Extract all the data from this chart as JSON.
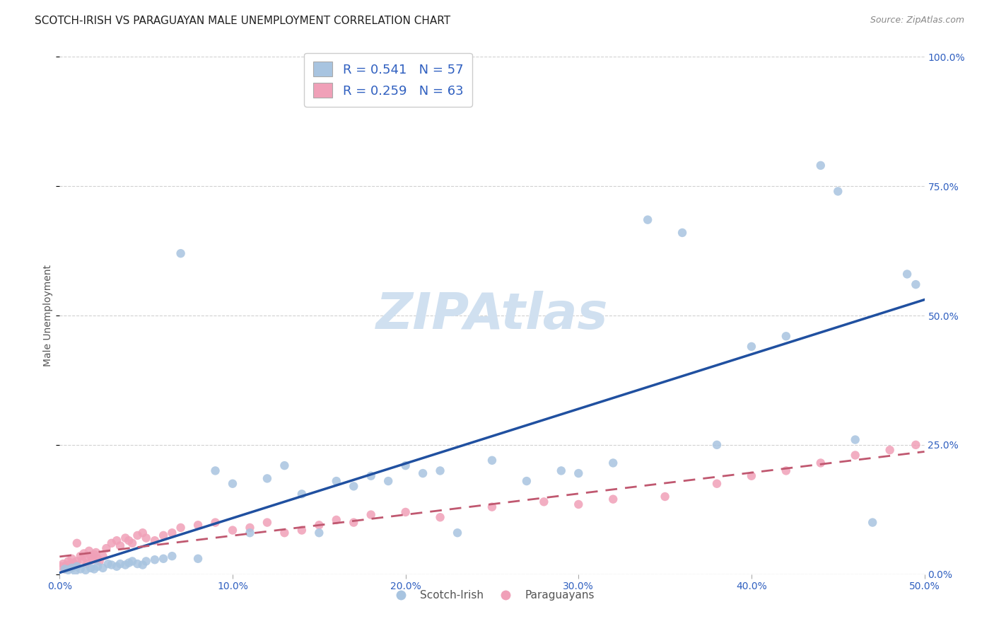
{
  "title": "SCOTCH-IRISH VS PARAGUAYAN MALE UNEMPLOYMENT CORRELATION CHART",
  "source": "Source: ZipAtlas.com",
  "xlabel_vals": [
    0.0,
    0.1,
    0.2,
    0.3,
    0.4,
    0.5
  ],
  "ylabel_vals": [
    0.0,
    0.25,
    0.5,
    0.75,
    1.0
  ],
  "xlim": [
    0.0,
    0.5
  ],
  "ylim": [
    0.0,
    1.0
  ],
  "ylabel": "Male Unemployment",
  "blue_color": "#a8c4e0",
  "pink_color": "#f0a0b8",
  "trendline_blue": "#2050a0",
  "trendline_pink": "#c05870",
  "watermark_color": "#d0e0f0",
  "legend_label_blue": "R = 0.541   N = 57",
  "legend_label_pink": "R = 0.259   N = 63",
  "legend_text_color": "#3060c0",
  "legend_bottom_blue": "Scotch-Irish",
  "legend_bottom_pink": "Paraguayans",
  "scotch_irish_x": [
    0.003,
    0.005,
    0.007,
    0.009,
    0.01,
    0.012,
    0.015,
    0.018,
    0.02,
    0.022,
    0.025,
    0.028,
    0.03,
    0.033,
    0.035,
    0.038,
    0.04,
    0.042,
    0.045,
    0.048,
    0.05,
    0.055,
    0.06,
    0.065,
    0.07,
    0.08,
    0.09,
    0.1,
    0.11,
    0.12,
    0.13,
    0.14,
    0.15,
    0.16,
    0.17,
    0.18,
    0.19,
    0.2,
    0.21,
    0.22,
    0.23,
    0.25,
    0.27,
    0.29,
    0.3,
    0.32,
    0.34,
    0.36,
    0.38,
    0.4,
    0.42,
    0.44,
    0.45,
    0.46,
    0.47,
    0.49,
    0.495
  ],
  "scotch_irish_y": [
    0.01,
    0.008,
    0.012,
    0.006,
    0.015,
    0.01,
    0.008,
    0.012,
    0.01,
    0.015,
    0.012,
    0.02,
    0.018,
    0.015,
    0.02,
    0.018,
    0.022,
    0.025,
    0.02,
    0.018,
    0.025,
    0.028,
    0.03,
    0.035,
    0.62,
    0.03,
    0.2,
    0.175,
    0.08,
    0.185,
    0.21,
    0.155,
    0.08,
    0.18,
    0.17,
    0.19,
    0.18,
    0.21,
    0.195,
    0.2,
    0.08,
    0.22,
    0.18,
    0.2,
    0.195,
    0.215,
    0.685,
    0.66,
    0.25,
    0.44,
    0.46,
    0.79,
    0.74,
    0.26,
    0.1,
    0.58,
    0.56
  ],
  "paraguayan_x": [
    0.001,
    0.002,
    0.003,
    0.004,
    0.005,
    0.006,
    0.007,
    0.008,
    0.009,
    0.01,
    0.01,
    0.012,
    0.013,
    0.014,
    0.015,
    0.016,
    0.017,
    0.018,
    0.019,
    0.02,
    0.021,
    0.022,
    0.023,
    0.025,
    0.027,
    0.03,
    0.033,
    0.035,
    0.038,
    0.04,
    0.042,
    0.045,
    0.048,
    0.05,
    0.055,
    0.06,
    0.065,
    0.07,
    0.08,
    0.09,
    0.1,
    0.11,
    0.12,
    0.13,
    0.14,
    0.15,
    0.16,
    0.17,
    0.18,
    0.2,
    0.22,
    0.25,
    0.28,
    0.3,
    0.32,
    0.35,
    0.38,
    0.4,
    0.42,
    0.44,
    0.46,
    0.48,
    0.495
  ],
  "paraguayan_y": [
    0.015,
    0.02,
    0.01,
    0.018,
    0.025,
    0.012,
    0.03,
    0.022,
    0.018,
    0.025,
    0.06,
    0.035,
    0.028,
    0.04,
    0.032,
    0.02,
    0.045,
    0.035,
    0.028,
    0.038,
    0.042,
    0.03,
    0.025,
    0.035,
    0.05,
    0.06,
    0.065,
    0.055,
    0.07,
    0.065,
    0.06,
    0.075,
    0.08,
    0.07,
    0.065,
    0.075,
    0.08,
    0.09,
    0.095,
    0.1,
    0.085,
    0.09,
    0.1,
    0.08,
    0.085,
    0.095,
    0.105,
    0.1,
    0.115,
    0.12,
    0.11,
    0.13,
    0.14,
    0.135,
    0.145,
    0.15,
    0.175,
    0.19,
    0.2,
    0.215,
    0.23,
    0.24,
    0.25
  ],
  "grid_color": "#cccccc",
  "background_color": "#ffffff",
  "title_fontsize": 11,
  "axis_tick_color": "#3060c0",
  "axis_tick_fontsize": 10,
  "marker_size": 80
}
